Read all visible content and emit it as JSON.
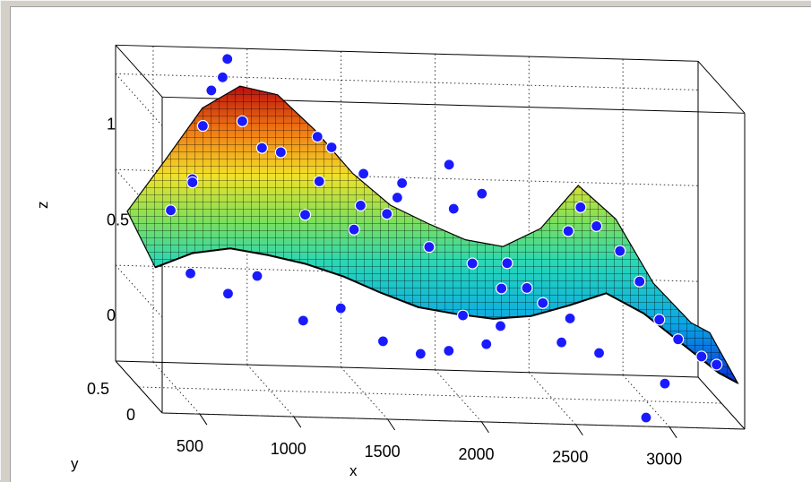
{
  "window": {
    "background": "#d4d0c8",
    "axes_background": "#ffffff"
  },
  "chart_data": {
    "type": "surface3d-scatter",
    "xlabel": "x",
    "ylabel": "y",
    "zlabel": "z",
    "xlim": [
      300,
      3400
    ],
    "ylim": [
      0,
      1
    ],
    "zlim": [
      -0.5,
      1.2
    ],
    "x_ticks": [
      "500",
      "1000",
      "1500",
      "2000",
      "2500",
      "3000"
    ],
    "y_ticks": [
      "0",
      "0.5"
    ],
    "z_ticks": [
      "0",
      "0.5",
      "1"
    ],
    "grid": true,
    "colormap": "jet",
    "marker_color": "#1a1aff",
    "surface_profile": {
      "x": [
        300,
        500,
        700,
        900,
        1100,
        1300,
        1500,
        1700,
        1900,
        2100,
        2300,
        2500,
        2700,
        2900,
        3100,
        3300,
        3400
      ],
      "z_back": [
        0.35,
        0.62,
        0.9,
        1.02,
        0.98,
        0.8,
        0.58,
        0.42,
        0.33,
        0.25,
        0.22,
        0.32,
        0.55,
        0.38,
        0.05,
        -0.15,
        -0.2
      ],
      "z_front": [
        0.22,
        0.3,
        0.33,
        0.3,
        0.26,
        0.2,
        0.12,
        0.05,
        0.02,
        0.0,
        0.02,
        0.08,
        0.15,
        0.05,
        -0.1,
        -0.25,
        -0.3
      ]
    },
    "points": [
      {
        "x": 420,
        "y": 0.3,
        "z": 0.48
      },
      {
        "x": 560,
        "y": 0.4,
        "z": 0.62
      },
      {
        "x": 610,
        "y": 0.6,
        "z": 0.55
      },
      {
        "x": 690,
        "y": 0.7,
        "z": 0.82
      },
      {
        "x": 760,
        "y": 0.8,
        "z": 0.98
      },
      {
        "x": 820,
        "y": 0.8,
        "z": 1.05
      },
      {
        "x": 870,
        "y": 0.9,
        "z": 1.12
      },
      {
        "x": 900,
        "y": 0.7,
        "z": 0.85
      },
      {
        "x": 980,
        "y": 0.6,
        "z": 0.74
      },
      {
        "x": 1080,
        "y": 0.6,
        "z": 0.72
      },
      {
        "x": 1160,
        "y": 0.4,
        "z": 0.45
      },
      {
        "x": 1260,
        "y": 0.5,
        "z": 0.6
      },
      {
        "x": 1300,
        "y": 0.7,
        "z": 0.78
      },
      {
        "x": 1420,
        "y": 0.4,
        "z": 0.38
      },
      {
        "x": 1480,
        "y": 0.5,
        "z": 0.48
      },
      {
        "x": 1520,
        "y": 0.6,
        "z": 0.62
      },
      {
        "x": 1620,
        "y": 0.5,
        "z": 0.44
      },
      {
        "x": 1700,
        "y": 0.6,
        "z": 0.5
      },
      {
        "x": 1820,
        "y": 0.4,
        "z": 0.3
      },
      {
        "x": 2000,
        "y": 0.6,
        "z": 0.45
      },
      {
        "x": 2050,
        "y": 0.4,
        "z": 0.22
      },
      {
        "x": 2180,
        "y": 0.3,
        "z": 0.12
      },
      {
        "x": 2260,
        "y": 0.5,
        "z": 0.2
      },
      {
        "x": 2340,
        "y": 0.4,
        "z": 0.1
      },
      {
        "x": 2400,
        "y": 0.3,
        "z": 0.05
      },
      {
        "x": 2520,
        "y": 0.2,
        "z": 0.0
      },
      {
        "x": 2610,
        "y": 0.6,
        "z": 0.35
      },
      {
        "x": 2700,
        "y": 0.7,
        "z": 0.45
      },
      {
        "x": 2760,
        "y": 0.6,
        "z": 0.38
      },
      {
        "x": 2860,
        "y": 0.5,
        "z": 0.28
      },
      {
        "x": 2940,
        "y": 0.4,
        "z": 0.15
      },
      {
        "x": 3020,
        "y": 0.3,
        "z": -0.02
      },
      {
        "x": 3120,
        "y": 0.3,
        "z": -0.12
      },
      {
        "x": 3220,
        "y": 0.2,
        "z": -0.18
      },
      {
        "x": 3300,
        "y": 0.2,
        "z": -0.22
      },
      {
        "x": 2900,
        "y": 0.1,
        "z": -0.48
      },
      {
        "x": 1100,
        "y": 0.2,
        "z": -0.05
      },
      {
        "x": 1300,
        "y": 0.2,
        "z": 0.02
      },
      {
        "x": 1500,
        "y": 0.1,
        "z": -0.12
      },
      {
        "x": 1700,
        "y": 0.1,
        "z": -0.18
      },
      {
        "x": 1850,
        "y": 0.1,
        "z": -0.16
      },
      {
        "x": 2050,
        "y": 0.1,
        "z": -0.12
      },
      {
        "x": 700,
        "y": 0.2,
        "z": 0.08
      },
      {
        "x": 500,
        "y": 0.2,
        "z": 0.18
      },
      {
        "x": 880,
        "y": 0.3,
        "z": 0.15
      },
      {
        "x": 1950,
        "y": 0.2,
        "z": 0.0
      },
      {
        "x": 2150,
        "y": 0.2,
        "z": -0.05
      },
      {
        "x": 2450,
        "y": 0.1,
        "z": -0.1
      },
      {
        "x": 2650,
        "y": 0.1,
        "z": -0.15
      },
      {
        "x": 3000,
        "y": 0.1,
        "z": -0.3
      },
      {
        "x": 1400,
        "y": 0.8,
        "z": 0.7
      },
      {
        "x": 1750,
        "y": 0.7,
        "z": 0.55
      },
      {
        "x": 2200,
        "y": 0.8,
        "z": 0.48
      },
      {
        "x": 2050,
        "y": 0.9,
        "z": 0.6
      }
    ]
  }
}
